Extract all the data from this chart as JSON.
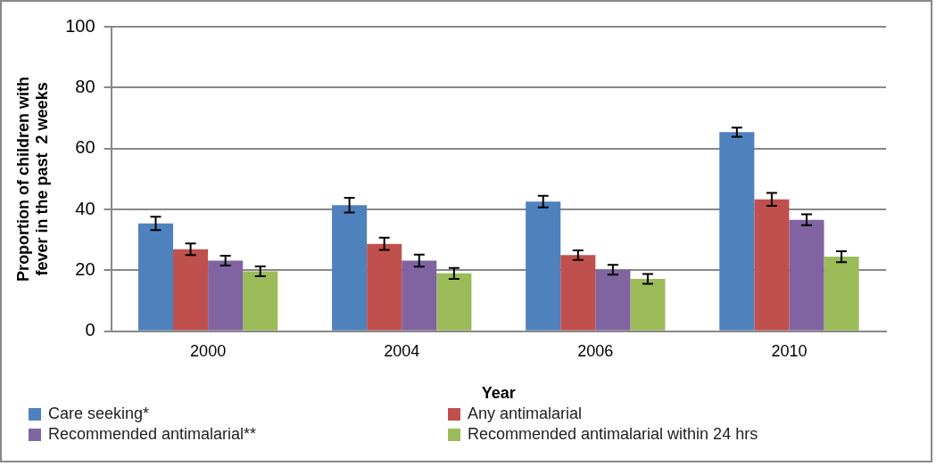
{
  "chart_data": {
    "type": "bar",
    "xlabel": "Year",
    "ylabel": "Proportion of children with fever in the past  2 weeks",
    "categories": [
      "2000",
      "2004",
      "2006",
      "2010"
    ],
    "series": [
      {
        "name": "Care seeking*",
        "color": "#4f81bd",
        "values": [
          35.4,
          41.4,
          42.6,
          65.4
        ],
        "errors": [
          2.2,
          2.4,
          1.9,
          1.5
        ]
      },
      {
        "name": "Any antimalarial",
        "color": "#c0504d",
        "values": [
          26.9,
          28.7,
          25.0,
          43.3
        ],
        "errors": [
          1.9,
          2,
          1.6,
          2.1
        ]
      },
      {
        "name": "Recommended antimalarial**",
        "color": "#8064a2",
        "values": [
          23.2,
          23.2,
          20.2,
          36.6
        ],
        "errors": [
          1.6,
          2,
          1.6,
          1.8
        ]
      },
      {
        "name": "Recommended antimalarial within 24 hrs",
        "color": "#9bbb59",
        "values": [
          19.7,
          19.0,
          17.2,
          24.5
        ],
        "errors": [
          1.6,
          1.8,
          1.6,
          1.8
        ]
      }
    ],
    "ylim": [
      0,
      100
    ],
    "yticks": [
      0,
      20,
      40,
      60,
      80,
      100
    ],
    "grid": "y",
    "legend": "bottom"
  }
}
